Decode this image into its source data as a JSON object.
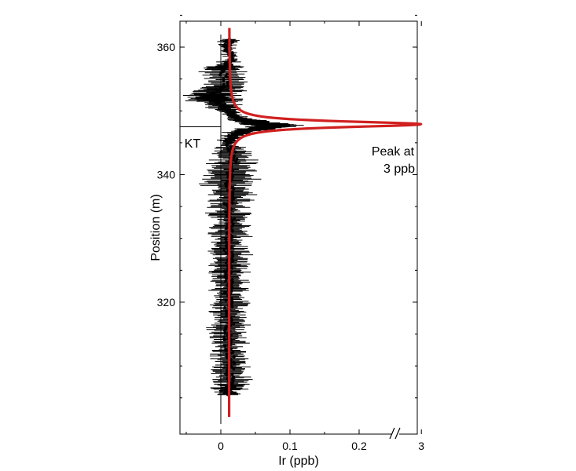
{
  "chart_data": {
    "type": "scatter",
    "title": "",
    "xlabel": "Ir (ppb)",
    "ylabel": "Position (m)",
    "xlim": [
      -0.06,
      0.3
    ],
    "ylim": [
      300,
      365
    ],
    "x_axis_break": {
      "after_tick": 0.2,
      "break_label_value": "3"
    },
    "x_ticks": [
      "0",
      "0.1",
      "0.2",
      "3"
    ],
    "x_tick_values": [
      0,
      0.1,
      0.2,
      0.29
    ],
    "y_ticks": [
      320,
      340,
      360
    ],
    "grid": false,
    "legend": "none",
    "annotations": {
      "boundary_label": "KT",
      "boundary_position_m": 347.5,
      "peak_line1": "Peak at",
      "peak_line2": "3 ppb"
    },
    "series": [
      {
        "kind": "scatter_with_errorbars",
        "color": "#000000",
        "points": [
          {
            "y": 361.2,
            "x": 0.012,
            "err": 0.01
          },
          {
            "y": 360.0,
            "x": 0.008,
            "err": 0.006
          },
          {
            "y": 358.0,
            "x": 0.015,
            "err": 0.009
          },
          {
            "y": 356.5,
            "x": 0.002,
            "err": 0.025
          },
          {
            "y": 354.0,
            "x": 0.01,
            "err": 0.02
          },
          {
            "y": 352.5,
            "x": -0.015,
            "err": 0.03
          },
          {
            "y": 351.5,
            "x": -0.005,
            "err": 0.03
          },
          {
            "y": 350.0,
            "x": 0.012,
            "err": 0.01
          },
          {
            "y": 349.0,
            "x": 0.02,
            "err": 0.01
          },
          {
            "y": 348.2,
            "x": 0.05,
            "err": 0.02
          },
          {
            "y": 347.7,
            "x": 0.08,
            "err": 0.03
          },
          {
            "y": 347.3,
            "x": 0.06,
            "err": 0.02
          },
          {
            "y": 346.8,
            "x": 0.03,
            "err": 0.015
          },
          {
            "y": 346.0,
            "x": 0.015,
            "err": 0.01
          },
          {
            "y": 345.0,
            "x": 0.012,
            "err": 0.01
          },
          {
            "y": 343.0,
            "x": 0.02,
            "err": 0.025
          },
          {
            "y": 341.0,
            "x": 0.015,
            "err": 0.025
          },
          {
            "y": 339.0,
            "x": 0.01,
            "err": 0.03
          },
          {
            "y": 337.0,
            "x": 0.015,
            "err": 0.025
          },
          {
            "y": 335.0,
            "x": 0.01,
            "err": 0.025
          },
          {
            "y": 333.0,
            "x": 0.015,
            "err": 0.02
          },
          {
            "y": 331.0,
            "x": 0.012,
            "err": 0.02
          },
          {
            "y": 329.0,
            "x": 0.01,
            "err": 0.02
          },
          {
            "y": 327.0,
            "x": 0.012,
            "err": 0.02
          },
          {
            "y": 325.0,
            "x": 0.01,
            "err": 0.02
          },
          {
            "y": 323.0,
            "x": 0.012,
            "err": 0.02
          },
          {
            "y": 321.0,
            "x": 0.01,
            "err": 0.02
          },
          {
            "y": 319.0,
            "x": 0.012,
            "err": 0.02
          },
          {
            "y": 317.0,
            "x": 0.015,
            "err": 0.02
          },
          {
            "y": 315.0,
            "x": 0.01,
            "err": 0.02
          },
          {
            "y": 313.0,
            "x": 0.012,
            "err": 0.02
          },
          {
            "y": 311.0,
            "x": 0.015,
            "err": 0.02
          },
          {
            "y": 309.0,
            "x": 0.012,
            "err": 0.02
          },
          {
            "y": 307.0,
            "x": 0.015,
            "err": 0.02
          },
          {
            "y": 305.5,
            "x": 0.01,
            "err": 0.015
          }
        ]
      },
      {
        "kind": "fit_curve",
        "color": "#d0201f",
        "baseline": 0.012,
        "peak_x": 0.29,
        "peak_y": 347.9,
        "y_range": [
          302,
          363
        ]
      }
    ]
  }
}
